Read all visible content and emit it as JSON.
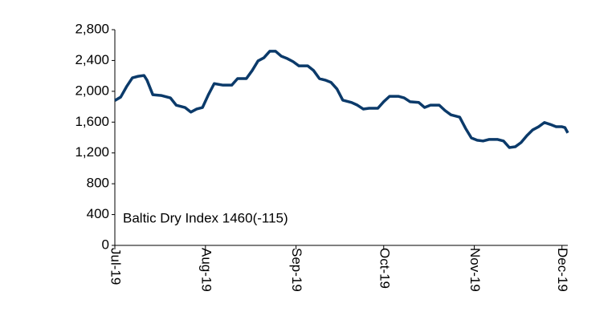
{
  "chart_data": {
    "type": "line",
    "annotation": "Baltic Dry Index  1460(-115)",
    "x": [
      0,
      2,
      4,
      6,
      8,
      10,
      11,
      13,
      16,
      19,
      21,
      24,
      26,
      28,
      30,
      32,
      34,
      37,
      40,
      42,
      45,
      47,
      49,
      51,
      53,
      55,
      57,
      59,
      61,
      63,
      66,
      68,
      70,
      72,
      74,
      76,
      78,
      81,
      83,
      85,
      87,
      90,
      92,
      94,
      97,
      99,
      101,
      104,
      106,
      108,
      111,
      113,
      115,
      118,
      120,
      122,
      124,
      126,
      128,
      131,
      133,
      135,
      137,
      139,
      141,
      143,
      145,
      147,
      149,
      151,
      153,
      154,
      155
    ],
    "series": [
      {
        "name": "Baltic Dry Index",
        "color": "#0b3a6a",
        "values": [
          1880,
          1925,
          2060,
          2175,
          2195,
          2205,
          2145,
          1955,
          1945,
          1915,
          1820,
          1790,
          1730,
          1770,
          1790,
          1955,
          2100,
          2080,
          2080,
          2165,
          2165,
          2270,
          2395,
          2435,
          2520,
          2520,
          2455,
          2425,
          2385,
          2330,
          2330,
          2270,
          2165,
          2145,
          2115,
          2030,
          1885,
          1855,
          1820,
          1770,
          1780,
          1780,
          1865,
          1935,
          1935,
          1915,
          1865,
          1855,
          1790,
          1820,
          1820,
          1750,
          1695,
          1665,
          1520,
          1395,
          1365,
          1355,
          1375,
          1375,
          1355,
          1270,
          1280,
          1335,
          1425,
          1500,
          1540,
          1595,
          1570,
          1540,
          1540,
          1530,
          1460
        ]
      }
    ],
    "xlim": [
      0,
      155
    ],
    "xticks": [
      {
        "value": 0,
        "label": "Jul-19"
      },
      {
        "value": 31,
        "label": "Aug-19"
      },
      {
        "value": 62,
        "label": "Sep-19"
      },
      {
        "value": 92,
        "label": "Oct-19"
      },
      {
        "value": 123,
        "label": "Nov-19"
      },
      {
        "value": 153,
        "label": "Dec-19"
      }
    ],
    "ylim": [
      0,
      2800
    ],
    "yticks": [
      0,
      {
        "value": 400,
        "label": "400"
      },
      {
        "value": 800,
        "label": "800"
      },
      {
        "value": 1200,
        "label": "1,200"
      },
      {
        "value": 1600,
        "label": "1,600"
      },
      {
        "value": 2000,
        "label": "2,000"
      },
      {
        "value": 2400,
        "label": "2,400"
      },
      {
        "value": 2800,
        "label": "2,800"
      }
    ],
    "grid": false
  }
}
